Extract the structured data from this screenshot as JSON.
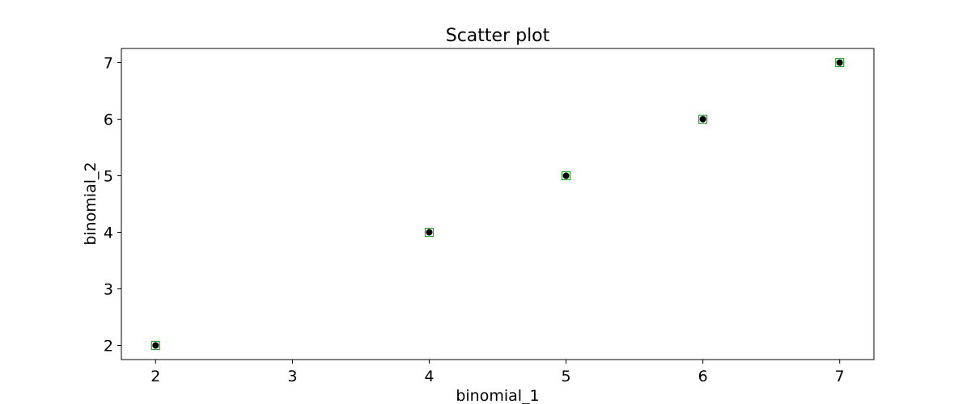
{
  "chart_data": {
    "type": "scatter",
    "title": "Scatter plot",
    "xlabel": "binomial_1",
    "ylabel": "binomial_2",
    "xlim": [
      1.75,
      7.25
    ],
    "ylim": [
      1.75,
      7.25
    ],
    "xticks": [
      "2",
      "3",
      "4",
      "5",
      "6",
      "7"
    ],
    "yticks": [
      "2",
      "3",
      "4",
      "5",
      "6",
      "7"
    ],
    "grid": false,
    "points": [
      {
        "x": 2,
        "y": 2
      },
      {
        "x": 4,
        "y": 4
      },
      {
        "x": 5,
        "y": 5
      },
      {
        "x": 6,
        "y": 6
      },
      {
        "x": 7,
        "y": 7
      }
    ],
    "colors": {
      "marker_fill": "#000000",
      "marker_outline": "#2ca02c"
    }
  }
}
